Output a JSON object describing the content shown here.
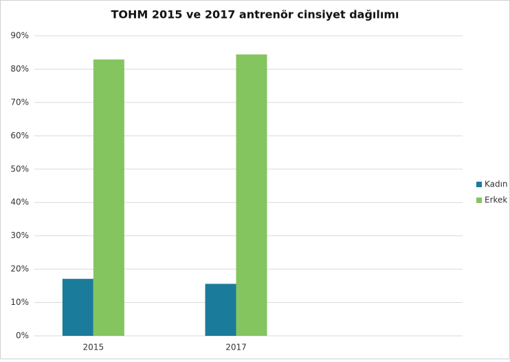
{
  "chart_data": {
    "type": "bar",
    "title": "TOHM 2015 ve 2017 antrenör cinsiyet dağılımı",
    "categories": [
      "2015",
      "2017",
      null
    ],
    "series": [
      {
        "name": "Kadın",
        "color": "#1b7b9b",
        "values": [
          17.1,
          15.6,
          null
        ]
      },
      {
        "name": "Erkek",
        "color": "#84c55f",
        "values": [
          82.9,
          84.4,
          null
        ]
      }
    ],
    "ylim": [
      0,
      90
    ],
    "yticks": [
      {
        "value": 0,
        "label": "0%"
      },
      {
        "value": 10,
        "label": "10%"
      },
      {
        "value": 20,
        "label": "20%"
      },
      {
        "value": 30,
        "label": "30%"
      },
      {
        "value": 40,
        "label": "40%"
      },
      {
        "value": 50,
        "label": "50%"
      },
      {
        "value": 60,
        "label": "60%"
      },
      {
        "value": 70,
        "label": "70%"
      },
      {
        "value": 80,
        "label": "80%"
      },
      {
        "value": 90,
        "label": "90%"
      }
    ],
    "grid": true,
    "legend": "right"
  }
}
